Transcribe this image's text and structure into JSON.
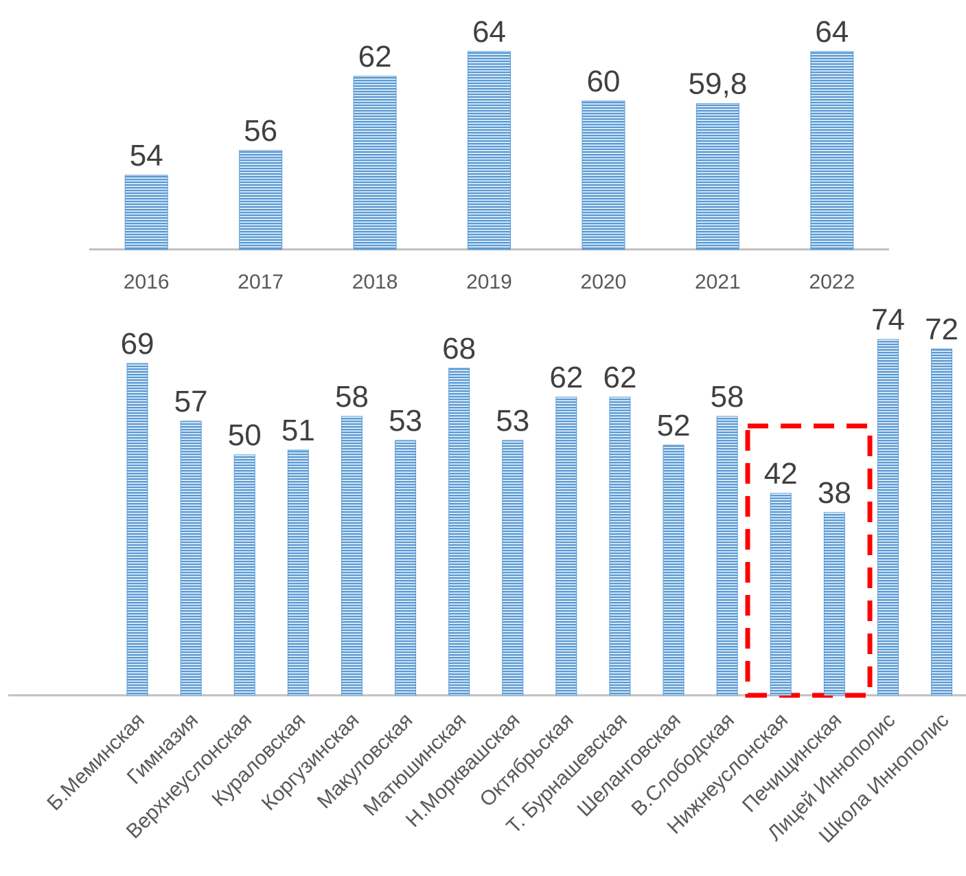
{
  "chart_data": [
    {
      "type": "bar",
      "categories": [
        "2016",
        "2017",
        "2018",
        "2019",
        "2020",
        "2021",
        "2022"
      ],
      "values": [
        54,
        56,
        62,
        64,
        60,
        59.8,
        64
      ],
      "value_labels": [
        "54",
        "56",
        "62",
        "64",
        "60",
        "59,8",
        "64"
      ],
      "color": "#5b9bd5",
      "ylim": [
        48,
        66
      ]
    },
    {
      "type": "bar",
      "categories": [
        "Б.Меминская",
        "Гимназия",
        "Верхнеуслонская",
        "Кураловская",
        "Коргузинская",
        "Макуловская",
        "Матюшинская",
        "Н.Морквашская",
        "Октябрьская",
        "Т. Бурнашевская",
        "Шеланговская",
        "В.Слободская",
        "Нижнеуслонская",
        "Печищинская",
        "Лицей Иннополис",
        "Школа Иннополис"
      ],
      "values": [
        69,
        57,
        50,
        51,
        58,
        53,
        68,
        53,
        62,
        62,
        52,
        58,
        42,
        38,
        74,
        72
      ],
      "color": "#5b9bd5",
      "ylim": [
        0,
        80
      ]
    }
  ]
}
